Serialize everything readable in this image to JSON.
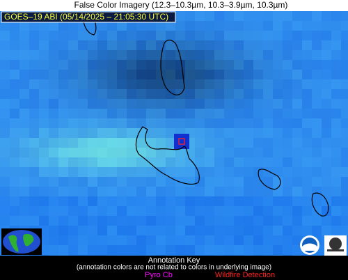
{
  "header": {
    "title": "False Color Imagery (12.3–10.3µm, 10.3–3.9µm, 10.3µm)"
  },
  "image": {
    "label": "GOES–19 ABI (05/14/2025 – 21:05:30 UTC)"
  },
  "legend": {
    "title": "Annotation Key",
    "note": "(annotation colors are not related to colors in underlying image)",
    "items": [
      "Pyro Cb",
      "Wildfire Detection"
    ]
  }
}
